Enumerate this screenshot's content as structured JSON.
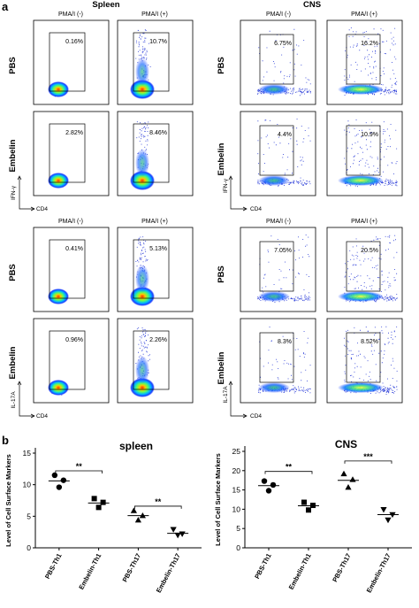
{
  "panel_a": {
    "label": "a",
    "group_titles": [
      "Spleen",
      "CNS"
    ],
    "col_headers": [
      "PMA/I (-)",
      "PMA/I (+)"
    ],
    "row_labels": [
      "PBS",
      "Embelin"
    ],
    "axis_x": "CD4",
    "axis_y_ifn": "IFN-γ",
    "axis_y_il17": "IL-17A",
    "plots": [
      {
        "block": "IFN-γ",
        "group": "Spleen",
        "row": "PBS",
        "col": "PMA/I (-)",
        "value": "0.16%"
      },
      {
        "block": "IFN-γ",
        "group": "Spleen",
        "row": "PBS",
        "col": "PMA/I (+)",
        "value": "10.7%"
      },
      {
        "block": "IFN-γ",
        "group": "CNS",
        "row": "PBS",
        "col": "PMA/I (-)",
        "value": "6.75%"
      },
      {
        "block": "IFN-γ",
        "group": "CNS",
        "row": "PBS",
        "col": "PMA/I (+)",
        "value": "16.2%"
      },
      {
        "block": "IFN-γ",
        "group": "Spleen",
        "row": "Embelin",
        "col": "PMA/I (-)",
        "value": "2.82%"
      },
      {
        "block": "IFN-γ",
        "group": "Spleen",
        "row": "Embelin",
        "col": "PMA/I (+)",
        "value": "8.46%"
      },
      {
        "block": "IFN-γ",
        "group": "CNS",
        "row": "Embelin",
        "col": "PMA/I (-)",
        "value": "4.4%"
      },
      {
        "block": "IFN-γ",
        "group": "CNS",
        "row": "Embelin",
        "col": "PMA/I (+)",
        "value": "10.9%"
      },
      {
        "block": "IL-17A",
        "group": "Spleen",
        "row": "PBS",
        "col": "PMA/I (-)",
        "value": "0.41%"
      },
      {
        "block": "IL-17A",
        "group": "Spleen",
        "row": "PBS",
        "col": "PMA/I (+)",
        "value": "5.13%"
      },
      {
        "block": "IL-17A",
        "group": "CNS",
        "row": "PBS",
        "col": "PMA/I (-)",
        "value": "7.05%"
      },
      {
        "block": "IL-17A",
        "group": "CNS",
        "row": "PBS",
        "col": "PMA/I (+)",
        "value": "20.5%"
      },
      {
        "block": "IL-17A",
        "group": "Spleen",
        "row": "Embelin",
        "col": "PMA/I (-)",
        "value": "0.96%"
      },
      {
        "block": "IL-17A",
        "group": "Spleen",
        "row": "Embelin",
        "col": "PMA/I (+)",
        "value": "2.26%"
      },
      {
        "block": "IL-17A",
        "group": "CNS",
        "row": "Embelin",
        "col": "PMA/I (-)",
        "value": "8.3%"
      },
      {
        "block": "IL-17A",
        "group": "CNS",
        "row": "Embelin",
        "col": "PMA/I (+)",
        "value": "8.52%"
      }
    ]
  },
  "panel_b": {
    "label": "b"
  },
  "chart_data": [
    {
      "type": "scatter",
      "title": "spleen",
      "ylabel": "Level of Cell Surface Markers",
      "categories": [
        "PBS-Th1",
        "Embelin-Th1",
        "PBS-Th17",
        "Embelin-Th17"
      ],
      "ylim": [
        0,
        15
      ],
      "yticks": [
        0,
        5,
        10,
        15
      ],
      "markers": [
        "circle",
        "square",
        "triangle",
        "triangle-down"
      ],
      "points": [
        [
          11.5,
          10.7,
          9.6
        ],
        [
          7.8,
          7.2,
          6.4
        ],
        [
          5.9,
          5.1,
          4.4
        ],
        [
          2.9,
          2.2,
          2.0
        ]
      ],
      "means": [
        10.6,
        7.1,
        5.1,
        2.3
      ],
      "significance": [
        {
          "pair": [
            0,
            1
          ],
          "label": "**",
          "y": 12.2
        },
        {
          "pair": [
            2,
            3
          ],
          "label": "**",
          "y": 6.6
        }
      ],
      "color": "#000000"
    },
    {
      "type": "scatter",
      "title": "CNS",
      "ylabel": "Level of Cell Surface Markers",
      "categories": [
        "PBS-Th1",
        "Embelin-Th1",
        "PBS-Th17",
        "Embelin-Th17"
      ],
      "ylim": [
        0,
        25
      ],
      "yticks": [
        0,
        5,
        10,
        15,
        20,
        25
      ],
      "markers": [
        "circle",
        "square",
        "triangle",
        "triangle-down"
      ],
      "points": [
        [
          17.3,
          16.3,
          14.8
        ],
        [
          11.8,
          11.0,
          9.8
        ],
        [
          19.2,
          17.7,
          15.7
        ],
        [
          9.9,
          8.6,
          7.2
        ]
      ],
      "means": [
        16.1,
        10.9,
        17.5,
        8.6
      ],
      "significance": [
        {
          "pair": [
            0,
            1
          ],
          "label": "**",
          "y": 19.8
        },
        {
          "pair": [
            2,
            3
          ],
          "label": "***",
          "y": 22.5
        }
      ],
      "color": "#000000"
    }
  ]
}
